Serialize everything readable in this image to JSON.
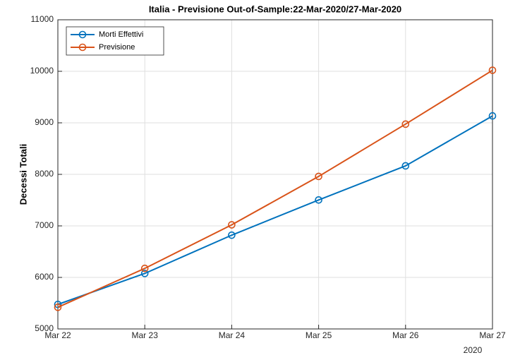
{
  "chart_data": {
    "type": "line",
    "title": "Italia - Previsione Out-of-Sample:22-Mar-2020/27-Mar-2020",
    "y_label": "Decessi Totali",
    "categories": [
      "Mar 22",
      "Mar 23",
      "Mar 24",
      "Mar 25",
      "Mar 26",
      "Mar 27"
    ],
    "x_year_label": "2020",
    "series": [
      {
        "name": "Morti Effettivi",
        "color": "#0072BD",
        "values": [
          5476,
          6077,
          6820,
          7503,
          8165,
          9134
        ]
      },
      {
        "name": "Previsione",
        "color": "#D95319",
        "values": [
          5420,
          6175,
          7020,
          7960,
          8975,
          10020
        ]
      }
    ],
    "ylim": [
      5000,
      11000
    ],
    "yticks": [
      5000,
      6000,
      7000,
      8000,
      9000,
      10000,
      11000
    ],
    "grid": true,
    "legend": "upper left"
  }
}
